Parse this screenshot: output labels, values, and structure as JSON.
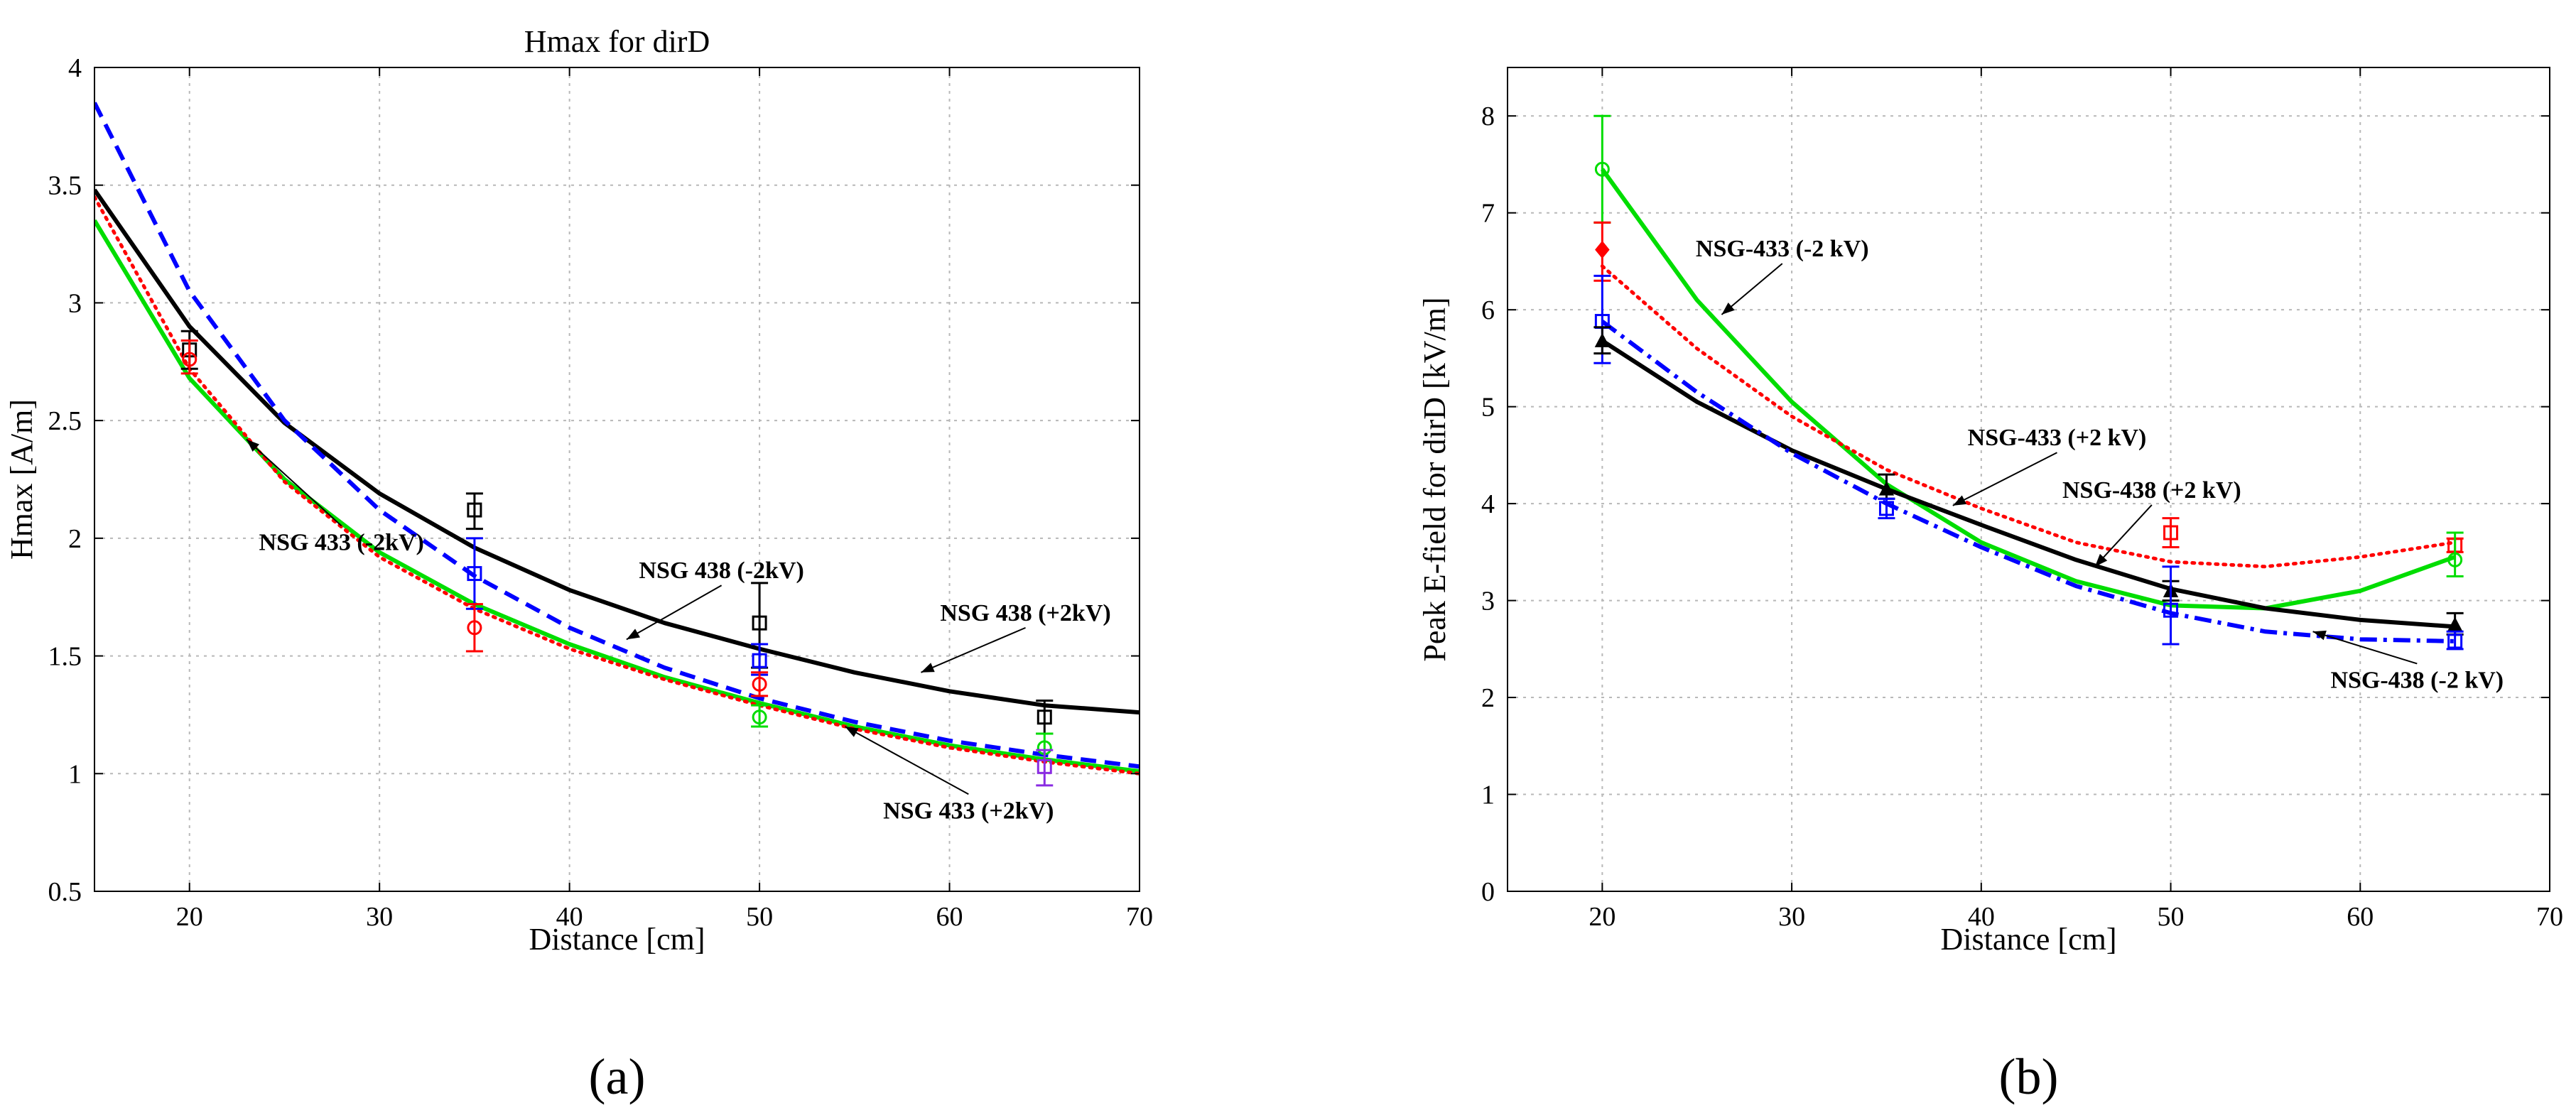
{
  "chart_data": [
    {
      "type": "line",
      "panel_label": "(a)",
      "title": "Hmax for dirD",
      "xlabel": "Distance [cm]",
      "ylabel": "Hmax [A/m]",
      "xlim": [
        15,
        70
      ],
      "ylim": [
        0.5,
        4
      ],
      "xticks": [
        20,
        30,
        40,
        50,
        60,
        70
      ],
      "yticks": [
        0.5,
        1,
        1.5,
        2,
        2.5,
        3,
        3.5,
        4
      ],
      "ytick_labels": [
        "0.5",
        "1",
        "1.5",
        "2",
        "2.5",
        "3",
        "3.5",
        "4"
      ],
      "grid": true,
      "series": [
        {
          "name": "NSG 438 (+2kV)",
          "color": "#000000",
          "style": "solid",
          "x": [
            15,
            20,
            25,
            30,
            35,
            40,
            45,
            50,
            55,
            60,
            65,
            70
          ],
          "y": [
            3.48,
            2.9,
            2.49,
            2.19,
            1.96,
            1.78,
            1.64,
            1.53,
            1.43,
            1.35,
            1.29,
            1.26
          ]
        },
        {
          "name": "NSG 438 (-2kV)",
          "color": "#0000ff",
          "style": "dash",
          "x": [
            15,
            20,
            25,
            30,
            35,
            40,
            45,
            50,
            55,
            60,
            65,
            70
          ],
          "y": [
            3.85,
            3.05,
            2.5,
            2.12,
            1.84,
            1.62,
            1.45,
            1.32,
            1.22,
            1.14,
            1.08,
            1.03
          ]
        },
        {
          "name": "NSG 433 (-2kV)",
          "color": "#00dd00",
          "style": "solid",
          "x": [
            15,
            20,
            25,
            30,
            35,
            40,
            45,
            50,
            55,
            60,
            65,
            70
          ],
          "y": [
            3.35,
            2.68,
            2.25,
            1.94,
            1.72,
            1.55,
            1.41,
            1.3,
            1.2,
            1.12,
            1.06,
            1.01
          ]
        },
        {
          "name": "NSG 433 (+2kV)",
          "color": "#ff0000",
          "style": "dot",
          "x": [
            15,
            20,
            25,
            30,
            35,
            40,
            45,
            50,
            55,
            60,
            65,
            70
          ],
          "y": [
            3.45,
            2.72,
            2.24,
            1.92,
            1.7,
            1.53,
            1.4,
            1.29,
            1.19,
            1.11,
            1.05,
            1.0
          ]
        }
      ],
      "error_points": [
        {
          "x": 20,
          "y": 2.8,
          "low": 2.72,
          "high": 2.88,
          "color": "#000000",
          "marker": "square"
        },
        {
          "x": 20,
          "y": 2.76,
          "low": 2.7,
          "high": 2.84,
          "color": "#ff0000",
          "marker": "circle"
        },
        {
          "x": 35,
          "y": 2.12,
          "low": 2.04,
          "high": 2.19,
          "color": "#000000",
          "marker": "square"
        },
        {
          "x": 35,
          "y": 1.85,
          "low": 1.7,
          "high": 2.0,
          "color": "#0000ff",
          "marker": "square"
        },
        {
          "x": 35,
          "y": 1.62,
          "low": 1.52,
          "high": 1.72,
          "color": "#ff0000",
          "marker": "circle"
        },
        {
          "x": 50,
          "y": 1.64,
          "low": 1.45,
          "high": 1.81,
          "color": "#000000",
          "marker": "square"
        },
        {
          "x": 50,
          "y": 1.48,
          "low": 1.42,
          "high": 1.55,
          "color": "#0000ff",
          "marker": "square"
        },
        {
          "x": 50,
          "y": 1.38,
          "low": 1.33,
          "high": 1.43,
          "color": "#ff0000",
          "marker": "circle"
        },
        {
          "x": 50,
          "y": 1.24,
          "low": 1.2,
          "high": 1.29,
          "color": "#00dd00",
          "marker": "circle"
        },
        {
          "x": 65,
          "y": 1.24,
          "low": 1.17,
          "high": 1.31,
          "color": "#000000",
          "marker": "square"
        },
        {
          "x": 65,
          "y": 1.11,
          "low": 1.06,
          "high": 1.17,
          "color": "#00dd00",
          "marker": "circle"
        },
        {
          "x": 65,
          "y": 1.03,
          "low": 0.95,
          "high": 1.1,
          "color": "#8a2be2",
          "marker": "square"
        }
      ],
      "annotations": [
        {
          "text": "NSG 433 (-2kV)",
          "label_at": [
            28,
            1.95
          ],
          "arrow_to": [
            23,
            2.42
          ]
        },
        {
          "text": "NSG 438 (-2kV)",
          "label_at": [
            48,
            1.83
          ],
          "arrow_to": [
            43,
            1.57
          ]
        },
        {
          "text": "NSG 438 (+2kV)",
          "label_at": [
            64,
            1.65
          ],
          "arrow_to": [
            58.5,
            1.43
          ]
        },
        {
          "text": "NSG 433 (+2kV)",
          "label_at": [
            61,
            0.81
          ],
          "arrow_to": [
            54.5,
            1.2
          ]
        }
      ]
    },
    {
      "type": "line",
      "panel_label": "(b)",
      "title": "",
      "xlabel": "Distance [cm]",
      "ylabel": "Peak E-field for dirD [kV/m]",
      "xlim": [
        15,
        70
      ],
      "ylim": [
        0,
        8.5
      ],
      "xticks": [
        20,
        30,
        40,
        50,
        60,
        70
      ],
      "yticks": [
        0,
        1,
        2,
        3,
        4,
        5,
        6,
        7,
        8
      ],
      "ytick_labels": [
        "0",
        "1",
        "2",
        "3",
        "4",
        "5",
        "6",
        "7",
        "8"
      ],
      "grid": true,
      "series": [
        {
          "name": "NSG-433 (-2 kV)",
          "color": "#00dd00",
          "style": "solid",
          "x": [
            20,
            25,
            30,
            35,
            40,
            45,
            50,
            55,
            60,
            65
          ],
          "y": [
            7.45,
            6.1,
            5.05,
            4.2,
            3.6,
            3.2,
            2.95,
            2.92,
            3.1,
            3.45
          ]
        },
        {
          "name": "NSG-433 (+2 kV)",
          "color": "#ff0000",
          "style": "dot",
          "x": [
            20,
            25,
            30,
            35,
            40,
            45,
            50,
            55,
            60,
            65
          ],
          "y": [
            6.45,
            5.6,
            4.9,
            4.35,
            3.95,
            3.6,
            3.4,
            3.35,
            3.45,
            3.6
          ]
        },
        {
          "name": "NSG-438 (+2 kV)",
          "color": "#000000",
          "style": "solid",
          "x": [
            20,
            25,
            30,
            35,
            40,
            45,
            50,
            55,
            60,
            65
          ],
          "y": [
            5.68,
            5.05,
            4.55,
            4.15,
            3.78,
            3.42,
            3.12,
            2.92,
            2.8,
            2.73
          ]
        },
        {
          "name": "NSG-438 (-2 kV)",
          "color": "#0000ff",
          "style": "dashdot",
          "x": [
            20,
            25,
            30,
            35,
            40,
            45,
            50,
            55,
            60,
            65
          ],
          "y": [
            5.88,
            5.15,
            4.52,
            4.0,
            3.55,
            3.15,
            2.87,
            2.68,
            2.6,
            2.58
          ]
        }
      ],
      "error_points": [
        {
          "x": 20,
          "y": 7.45,
          "low": 6.9,
          "high": 8.0,
          "color": "#00dd00",
          "marker": "circle"
        },
        {
          "x": 20,
          "y": 6.62,
          "low": 6.3,
          "high": 6.9,
          "color": "#ff0000",
          "marker": "diamond"
        },
        {
          "x": 20,
          "y": 5.88,
          "low": 5.45,
          "high": 6.35,
          "color": "#0000ff",
          "marker": "square"
        },
        {
          "x": 20,
          "y": 5.68,
          "low": 5.55,
          "high": 5.82,
          "color": "#000000",
          "marker": "triangle"
        },
        {
          "x": 35,
          "y": 4.15,
          "low": 4.05,
          "high": 4.3,
          "color": "#000000",
          "marker": "triangle"
        },
        {
          "x": 35,
          "y": 3.95,
          "low": 3.85,
          "high": 4.05,
          "color": "#0000ff",
          "marker": "square"
        },
        {
          "x": 50,
          "y": 3.7,
          "low": 3.55,
          "high": 3.85,
          "color": "#ff0000",
          "marker": "square"
        },
        {
          "x": 50,
          "y": 3.1,
          "low": 3.0,
          "high": 3.2,
          "color": "#000000",
          "marker": "triangle"
        },
        {
          "x": 50,
          "y": 2.9,
          "low": 2.55,
          "high": 3.35,
          "color": "#0000ff",
          "marker": "square"
        },
        {
          "x": 65,
          "y": 3.57,
          "low": 3.5,
          "high": 3.64,
          "color": "#ff0000",
          "marker": "square"
        },
        {
          "x": 65,
          "y": 3.42,
          "low": 3.25,
          "high": 3.7,
          "color": "#00dd00",
          "marker": "circle"
        },
        {
          "x": 65,
          "y": 2.75,
          "low": 2.65,
          "high": 2.87,
          "color": "#000000",
          "marker": "triangle"
        },
        {
          "x": 65,
          "y": 2.58,
          "low": 2.5,
          "high": 2.68,
          "color": "#0000ff",
          "marker": "square"
        }
      ],
      "annotations": [
        {
          "text": "NSG-433 (-2 kV)",
          "label_at": [
            29.5,
            6.55
          ],
          "arrow_to": [
            26.3,
            5.95
          ]
        },
        {
          "text": "NSG-433 (+2 kV)",
          "label_at": [
            44,
            4.6
          ],
          "arrow_to": [
            38.5,
            3.98
          ]
        },
        {
          "text": "NSG-438 (+2 kV)",
          "label_at": [
            49,
            4.06
          ],
          "arrow_to": [
            46,
            3.35
          ]
        },
        {
          "text": "NSG-438 (-2 kV)",
          "label_at": [
            63,
            2.1
          ],
          "arrow_to": [
            57.5,
            2.68
          ]
        }
      ]
    }
  ]
}
